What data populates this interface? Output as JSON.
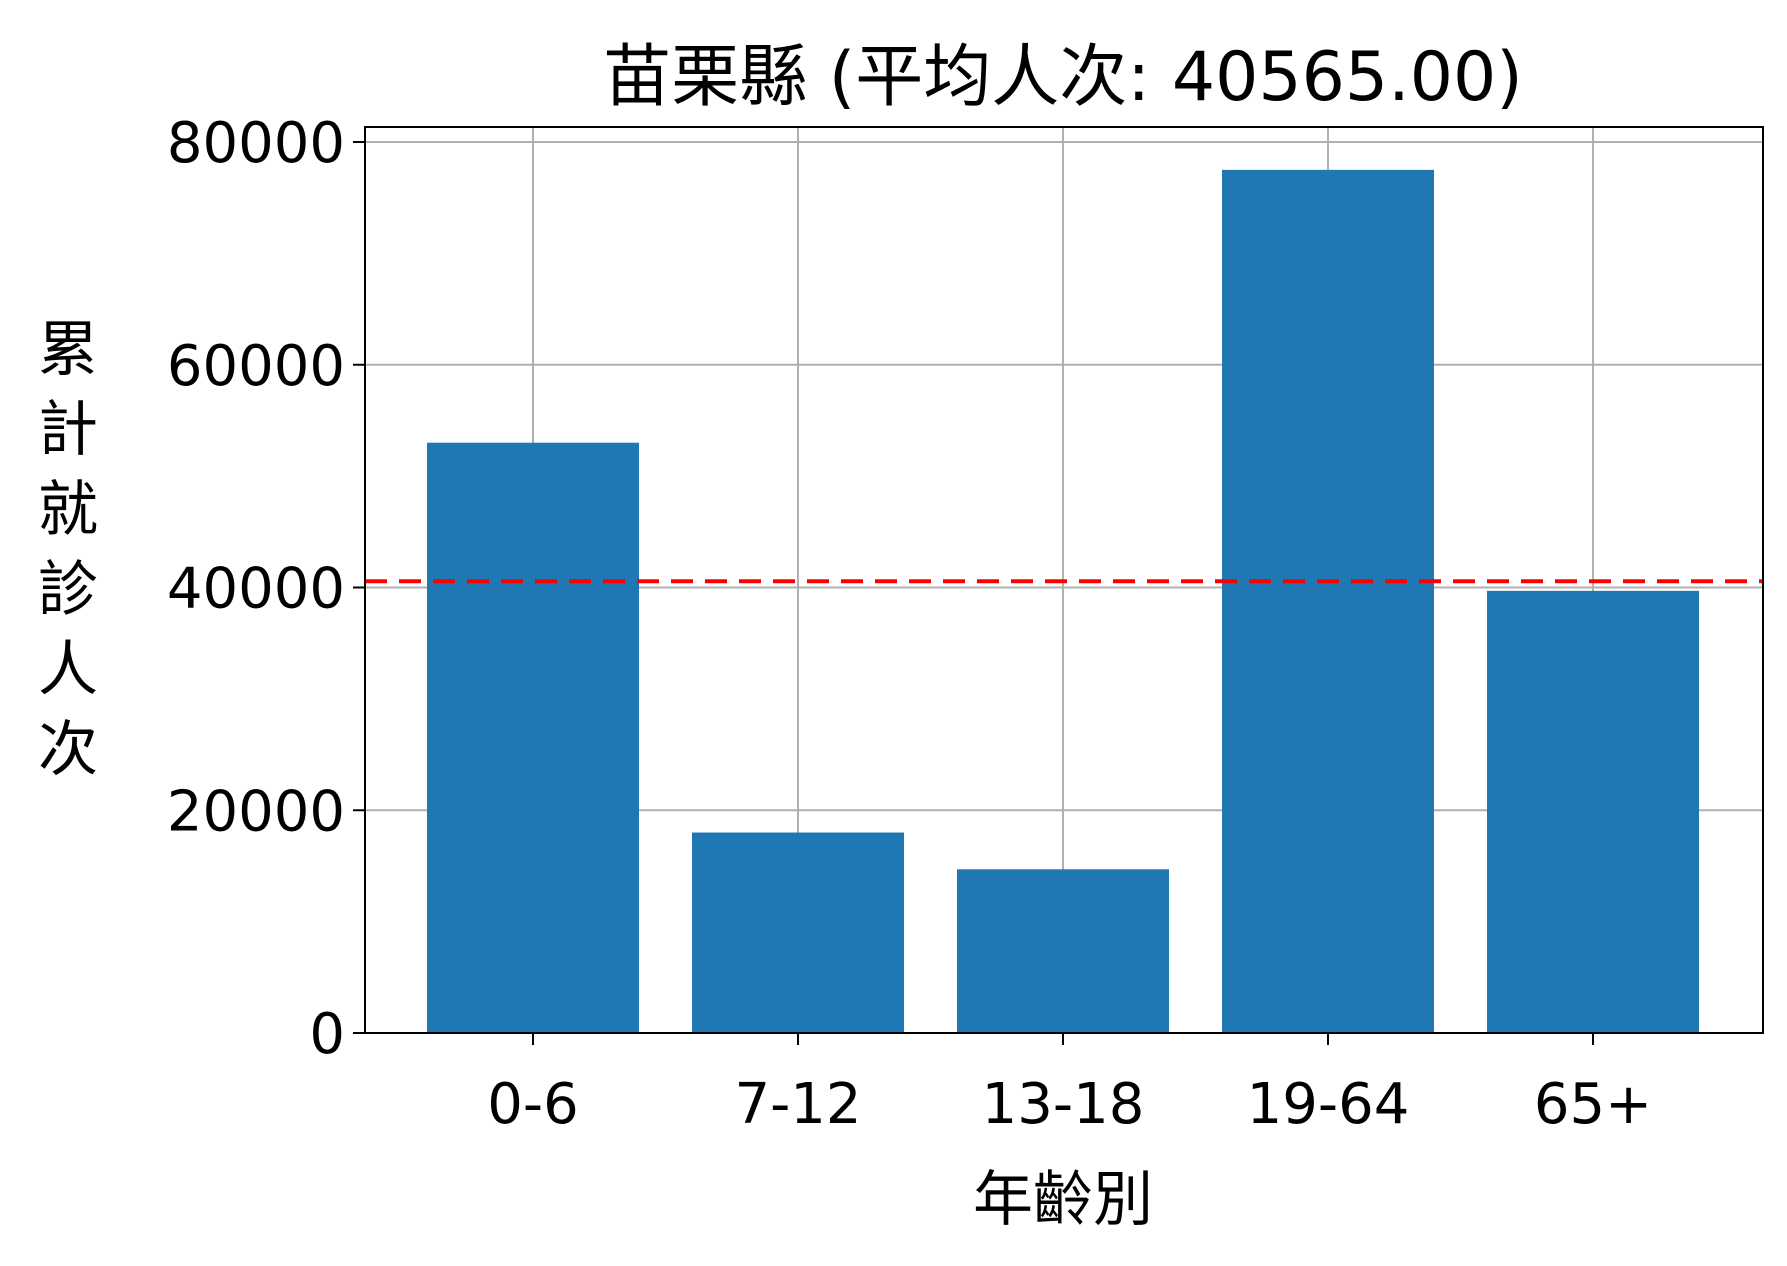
{
  "chart_data": {
    "type": "bar",
    "title": "苗栗縣 (平均人次: 40565.00)",
    "xlabel": "年齡別",
    "ylabel": "累計就診人次",
    "categories": [
      "0-6",
      "7-12",
      "13-18",
      "19-64",
      "65+"
    ],
    "values": [
      53000,
      18000,
      14700,
      77500,
      39700
    ],
    "ylim": [
      0,
      80000
    ],
    "yticks": [
      "0",
      "20000",
      "40000",
      "60000",
      "80000"
    ],
    "average": 40565,
    "grid": true,
    "bar_color": "#1f77b4",
    "average_line_color": "#ff0000"
  }
}
